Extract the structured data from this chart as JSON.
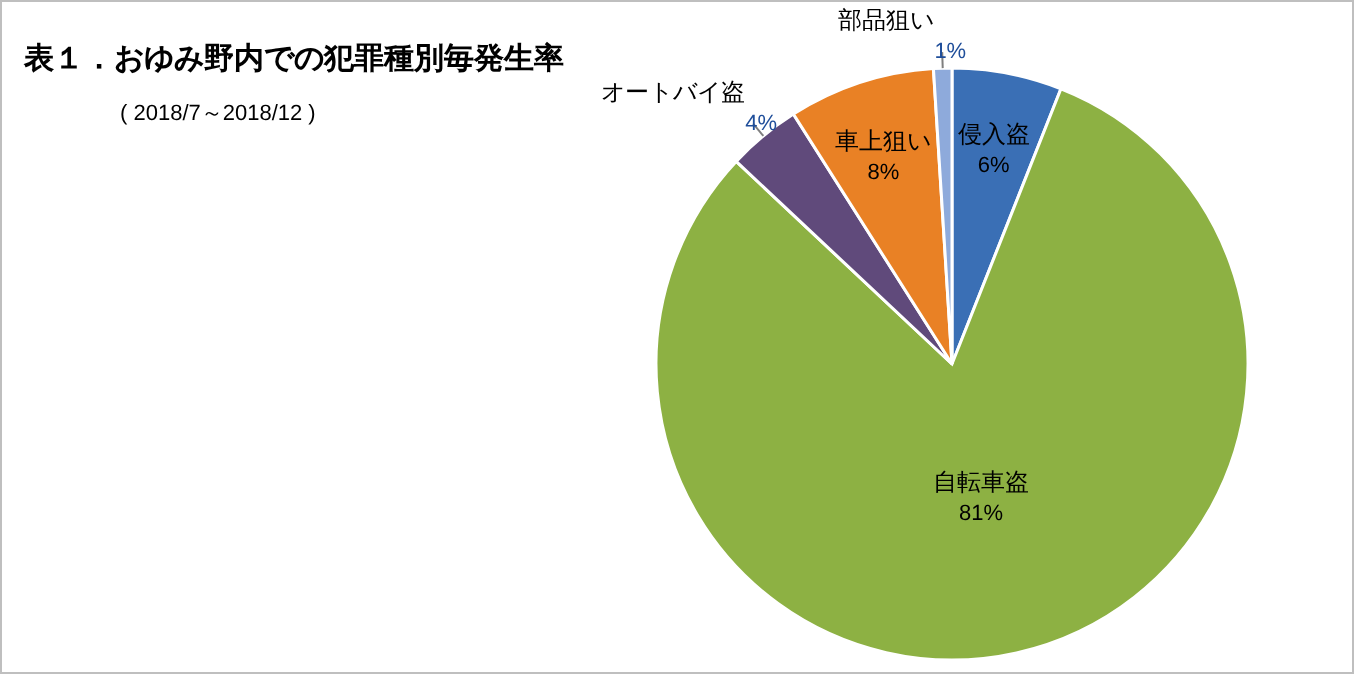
{
  "chart_data": {
    "type": "pie",
    "title": "表１．おゆみ野内での犯罪種別毎発生率",
    "subtitle": "( 2018/7～2018/12 )",
    "categories": [
      "侵入盗",
      "自転車盗",
      "オートバイ盗",
      "車上狙い",
      "部品狙い"
    ],
    "values": [
      6,
      81,
      4,
      8,
      1
    ],
    "value_labels": [
      "6%",
      "81%",
      "4%",
      "8%",
      "1%"
    ],
    "colors": [
      "#3a6fb5",
      "#8db143",
      "#604a7b",
      "#e98125",
      "#8eaadb"
    ]
  }
}
